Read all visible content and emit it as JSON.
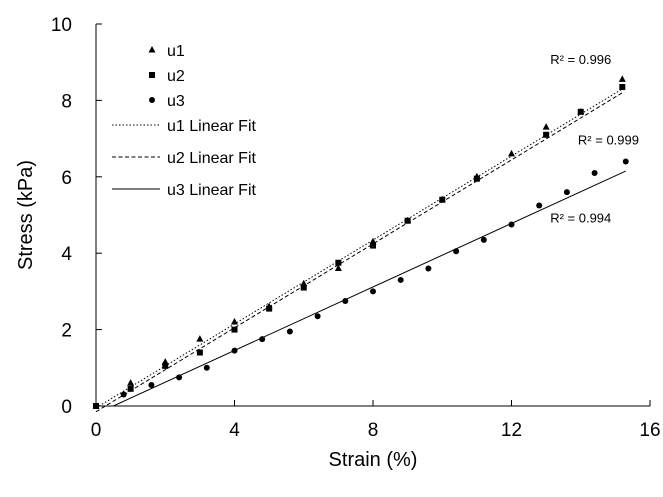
{
  "chart_data": {
    "type": "scatter",
    "title": "",
    "xlabel": "Strain (%)",
    "ylabel": "Stress (kPa)",
    "xlim": [
      0,
      16
    ],
    "ylim": [
      0,
      10
    ],
    "xticks": [
      0,
      4,
      8,
      12,
      16
    ],
    "yticks": [
      0,
      2,
      4,
      6,
      8,
      10
    ],
    "grid": false,
    "legend_position": "top-left",
    "series": [
      {
        "name": "u1",
        "marker": "triangle",
        "color": "#000000",
        "x": [
          0,
          1,
          2,
          3,
          4,
          5,
          6,
          7,
          8,
          9,
          10,
          11,
          12,
          13,
          14,
          15.2
        ],
        "y": [
          0,
          0.6,
          1.15,
          1.75,
          2.2,
          2.6,
          3.2,
          3.6,
          4.3,
          4.85,
          5.4,
          6.0,
          6.6,
          7.3,
          7.7,
          8.55
        ]
      },
      {
        "name": "u2",
        "marker": "square",
        "color": "#000000",
        "x": [
          0,
          1,
          2,
          3,
          4,
          5,
          6,
          7,
          8,
          9,
          10,
          11,
          13,
          14,
          15.2
        ],
        "y": [
          0,
          0.45,
          1.05,
          1.4,
          2.0,
          2.55,
          3.1,
          3.75,
          4.2,
          4.85,
          5.4,
          5.95,
          7.1,
          7.7,
          8.35
        ]
      },
      {
        "name": "u3",
        "marker": "circle",
        "color": "#000000",
        "x": [
          0.8,
          1.6,
          2.4,
          3.2,
          4.0,
          4.8,
          5.6,
          6.4,
          7.2,
          8.0,
          8.8,
          9.6,
          10.4,
          11.2,
          12.0,
          12.8,
          13.6,
          14.4,
          15.3
        ],
        "y": [
          0.3,
          0.55,
          0.75,
          1.0,
          1.45,
          1.75,
          1.95,
          2.35,
          2.75,
          3.0,
          3.3,
          3.6,
          4.05,
          4.35,
          4.75,
          5.25,
          5.6,
          6.1,
          6.4
        ]
      }
    ],
    "fits": [
      {
        "name": "u1 Linear Fit",
        "dash": "dotted",
        "x": [
          0,
          15.2
        ],
        "y": [
          -0.05,
          8.3
        ],
        "r2": "R² = 0.996",
        "r2_at": [
          14.0,
          8.95
        ]
      },
      {
        "name": "u2 Linear Fit",
        "dash": "dashed",
        "x": [
          0,
          15.2
        ],
        "y": [
          -0.15,
          8.2
        ],
        "r2": "R² = 0.999",
        "r2_at": [
          14.8,
          6.85
        ]
      },
      {
        "name": "u3 Linear Fit",
        "dash": "solid",
        "x": [
          0.5,
          15.3
        ],
        "y": [
          0,
          6.15
        ],
        "r2": "R² = 0.994",
        "r2_at": [
          14.0,
          4.8
        ]
      }
    ]
  }
}
